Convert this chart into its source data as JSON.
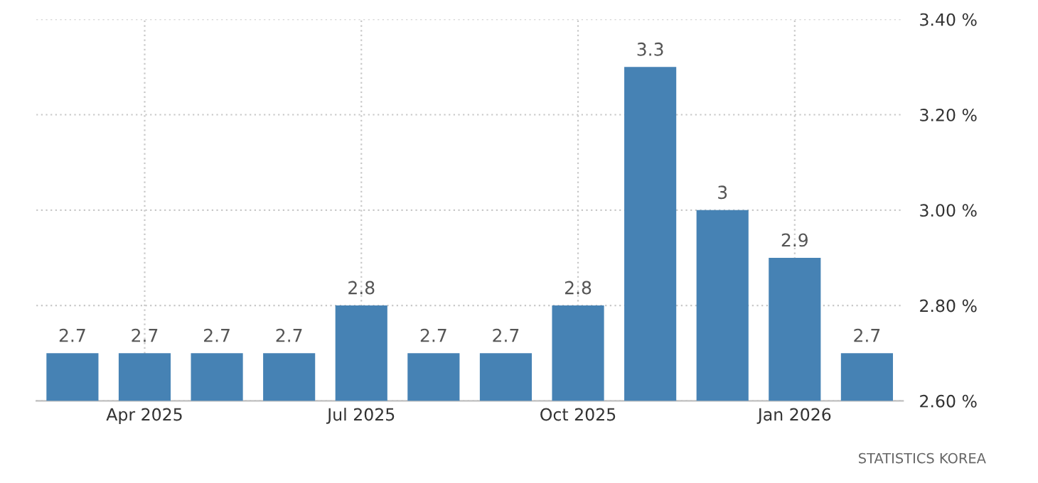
{
  "chart_data": {
    "type": "bar",
    "categories": [
      null,
      "Apr 2025",
      null,
      null,
      "Jul 2025",
      null,
      null,
      "Oct 2025",
      null,
      null,
      "Jan 2026",
      null
    ],
    "values": [
      2.7,
      2.7,
      2.7,
      2.7,
      2.8,
      2.7,
      2.7,
      2.8,
      3.3,
      3,
      2.9,
      2.7
    ],
    "color": "#4682b4",
    "ylim": [
      2.6,
      3.4
    ],
    "yticks": [
      {
        "value": 2.6,
        "label": "2.60 %"
      },
      {
        "value": 2.8,
        "label": "2.80 %"
      },
      {
        "value": 3.0,
        "label": "3.00 %"
      },
      {
        "value": 3.2,
        "label": "3.20 %"
      },
      {
        "value": 3.4,
        "label": "3.40 %"
      }
    ],
    "data_labels": true,
    "grid": true,
    "annotations": [
      "STATISTICS KOREA"
    ]
  }
}
